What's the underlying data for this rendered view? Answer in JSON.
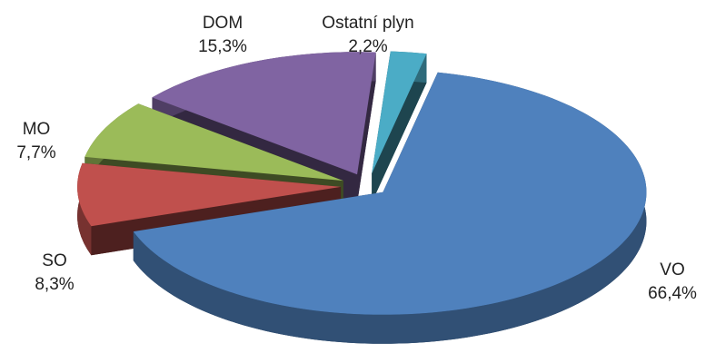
{
  "chart_data": {
    "type": "pie3d",
    "categories": [
      "VO",
      "SO",
      "MO",
      "DOM",
      "Ostatní plyn"
    ],
    "values": [
      66.4,
      8.3,
      7.7,
      15.3,
      2.2
    ],
    "value_labels": [
      "66,4%",
      "8,3%",
      "7,7%",
      "15,3%",
      "2,2%"
    ],
    "colors": [
      "#4f81bd",
      "#c0504d",
      "#9bbb59",
      "#8064a2",
      "#4bacc6"
    ]
  }
}
